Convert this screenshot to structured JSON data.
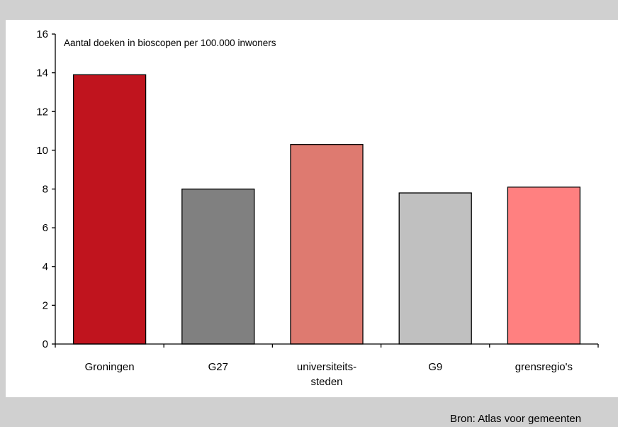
{
  "chart_data": {
    "type": "bar",
    "title": "Aantal doeken in bioscopen per 100.000 inwoners",
    "categories": [
      "Groningen",
      "G27",
      "universiteits-\nsteden",
      "G9",
      "grensregio's"
    ],
    "values": [
      13.9,
      8.0,
      10.3,
      7.8,
      8.1
    ],
    "colors": [
      "#c0141e",
      "#808080",
      "#de7a70",
      "#c0c0c0",
      "#ff8080"
    ],
    "ylim": [
      0,
      16
    ],
    "yticks": [
      0,
      2,
      4,
      6,
      8,
      10,
      12,
      14,
      16
    ],
    "xlabel": "",
    "ylabel": "",
    "grid": false,
    "legend": "none"
  },
  "source": "Bron: Atlas voor gemeenten"
}
